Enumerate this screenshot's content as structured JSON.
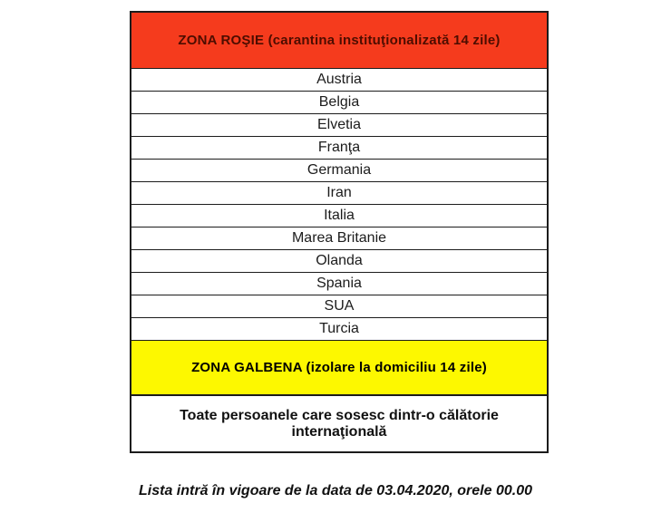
{
  "table": {
    "red_zone": {
      "title": "ZONA ROŞIE (carantina instituţionalizată 14 zile)",
      "header_bg": "#f53b1d",
      "header_text_color": "#4d0d00",
      "countries": [
        "Austria",
        "Belgia",
        "Elvetia",
        "Franţa",
        "Germania",
        "Iran",
        "Italia",
        "Marea Britanie",
        "Olanda",
        "Spania",
        "SUA",
        "Turcia"
      ]
    },
    "yellow_zone": {
      "title": "ZONA GALBENA (izolare la domiciliu 14 zile)",
      "header_bg": "#fdf800",
      "header_text_color": "#000000",
      "description": "Toate persoanele care sosesc dintr-o călătorie internaţională"
    },
    "border_color": "#1c1c1c"
  },
  "footer": {
    "note": "Lista intră în vigoare de la data de 03.04.2020, orele 00.00"
  }
}
